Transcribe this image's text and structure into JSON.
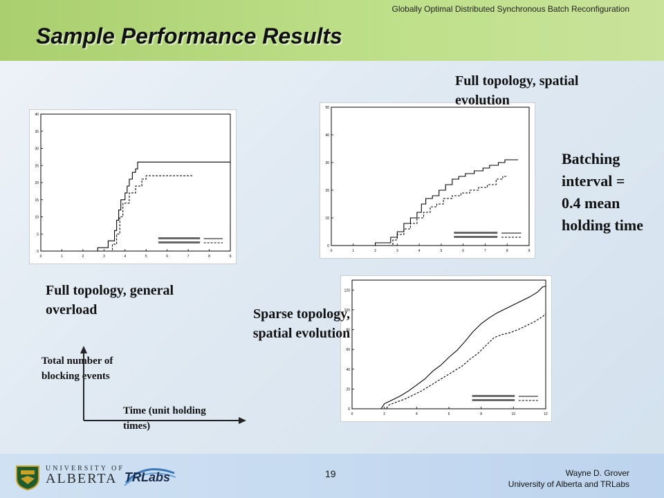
{
  "header": {
    "top_text": "Globally Optimal Distributed Synchronous  Batch Reconfiguration",
    "title": "Sample Performance Results"
  },
  "labels": {
    "full_general": "Full topology, general overload",
    "full_spatial": "Full topology, spatial evolution",
    "batching": "Batching interval = 0.4 mean holding time",
    "sparse_spatial": "Sparse topology, spatial evolution",
    "y_axis_desc": "Total number of blocking events",
    "x_axis_desc": "Time (unit holding times)"
  },
  "footer": {
    "page_number": "19",
    "author": "Wayne D. Grover",
    "affiliation": "University of Alberta and TRLabs",
    "ua_line1": "UNIVERSITY OF",
    "ua_line2": "ALBERTA",
    "trlabs": "TRLabs"
  },
  "colors": {
    "header_green": "#b4d77c",
    "footer_blue": "#c6dbf0"
  },
  "chart_data": [
    {
      "type": "line",
      "xlim": [
        0,
        9
      ],
      "ylim": [
        0,
        40
      ],
      "xticks": [
        0,
        1,
        2,
        3,
        4,
        5,
        6,
        7,
        8,
        9
      ],
      "yticks": [
        0,
        5,
        10,
        15,
        20,
        25,
        30,
        35,
        40
      ],
      "series": [
        {
          "style": "solid",
          "x": [
            0,
            2.7,
            2.7,
            3.2,
            3.2,
            3.5,
            3.5,
            3.6,
            3.6,
            3.7,
            3.7,
            3.8,
            3.8,
            4.0,
            4.0,
            4.1,
            4.1,
            4.2,
            4.2,
            4.35,
            4.35,
            4.5,
            4.5,
            4.6,
            4.6,
            9
          ],
          "y": [
            0,
            0,
            1,
            1,
            3,
            3,
            6,
            6,
            9,
            9,
            12,
            12,
            15,
            15,
            17,
            17,
            19,
            19,
            21,
            21,
            23,
            23,
            24,
            24,
            26,
            26
          ]
        },
        {
          "style": "dashed",
          "x": [
            0,
            3.4,
            3.4,
            3.6,
            3.6,
            3.75,
            3.75,
            3.9,
            3.9,
            4.2,
            4.2,
            4.5,
            4.5,
            4.8,
            4.8,
            5.0,
            5.0,
            7.2
          ],
          "y": [
            0,
            0,
            2,
            2,
            5,
            5,
            10,
            10,
            14,
            14,
            17,
            17,
            19,
            19,
            21,
            21,
            22,
            22
          ]
        }
      ]
    },
    {
      "type": "line",
      "xlim": [
        0,
        9
      ],
      "ylim": [
        0,
        50
      ],
      "xticks": [
        0,
        1,
        2,
        3,
        4,
        5,
        6,
        7,
        8,
        9
      ],
      "yticks": [
        0,
        10,
        20,
        30,
        40,
        50
      ],
      "series": [
        {
          "style": "solid",
          "x": [
            0,
            2.0,
            2.0,
            2.7,
            2.7,
            3.0,
            3.0,
            3.3,
            3.3,
            3.6,
            3.6,
            3.9,
            3.9,
            4.1,
            4.1,
            4.3,
            4.3,
            4.6,
            4.6,
            4.9,
            4.9,
            5.2,
            5.2,
            5.5,
            5.5,
            5.8,
            5.8,
            6.1,
            6.1,
            6.5,
            6.5,
            6.9,
            6.9,
            7.2,
            7.2,
            7.6,
            7.6,
            7.9,
            7.9,
            8.2,
            8.2,
            8.5
          ],
          "y": [
            0,
            0,
            1,
            1,
            3,
            3,
            5,
            5,
            8,
            8,
            10,
            10,
            12,
            12,
            15,
            15,
            17,
            17,
            18,
            18,
            20,
            20,
            22,
            22,
            24,
            24,
            25,
            25,
            26,
            26,
            27,
            27,
            28,
            28,
            29,
            29,
            30,
            30,
            31,
            31,
            31,
            31
          ]
        },
        {
          "style": "dashed",
          "x": [
            0,
            2.8,
            2.8,
            3.0,
            3.0,
            3.3,
            3.3,
            3.6,
            3.6,
            3.9,
            3.9,
            4.2,
            4.2,
            4.5,
            4.5,
            4.8,
            4.8,
            5.1,
            5.1,
            5.5,
            5.5,
            5.9,
            5.9,
            6.3,
            6.3,
            6.7,
            6.7,
            7.1,
            7.1,
            7.5,
            7.5,
            7.8,
            7.8,
            8.0
          ],
          "y": [
            0,
            0,
            2,
            2,
            4,
            4,
            6,
            6,
            8,
            8,
            10,
            10,
            12,
            12,
            14,
            14,
            15,
            15,
            17,
            17,
            18,
            18,
            19,
            19,
            20,
            20,
            21,
            21,
            22,
            22,
            24,
            24,
            25,
            25
          ]
        }
      ]
    },
    {
      "type": "line",
      "xlim": [
        0,
        12
      ],
      "ylim": [
        0,
        130
      ],
      "xticks": [
        0,
        2,
        4,
        6,
        8,
        10,
        12
      ],
      "yticks": [
        0,
        20,
        40,
        60,
        80,
        100,
        120
      ],
      "series": [
        {
          "style": "solid",
          "x": [
            0,
            1.8,
            2.0,
            2.5,
            3.0,
            3.5,
            4.0,
            4.5,
            5.0,
            5.5,
            6.0,
            6.5,
            7.0,
            7.5,
            8.0,
            8.5,
            9.0,
            9.5,
            10.0,
            10.5,
            11.0,
            11.5,
            11.8,
            12.0
          ],
          "y": [
            0,
            0,
            5,
            9,
            13,
            18,
            24,
            30,
            38,
            44,
            52,
            59,
            68,
            78,
            86,
            92,
            97,
            101,
            105,
            109,
            113,
            118,
            123,
            124
          ]
        },
        {
          "style": "dashed",
          "x": [
            0,
            2.1,
            2.3,
            2.8,
            3.3,
            3.8,
            4.3,
            4.8,
            5.3,
            5.8,
            6.3,
            6.8,
            7.3,
            7.8,
            8.3,
            8.8,
            9.3,
            9.8,
            10.3,
            10.8,
            11.3,
            11.8,
            12.0
          ],
          "y": [
            0,
            0,
            4,
            7,
            10,
            14,
            18,
            23,
            28,
            33,
            38,
            43,
            50,
            56,
            64,
            72,
            75,
            77,
            80,
            84,
            88,
            93,
            96
          ]
        }
      ]
    }
  ]
}
